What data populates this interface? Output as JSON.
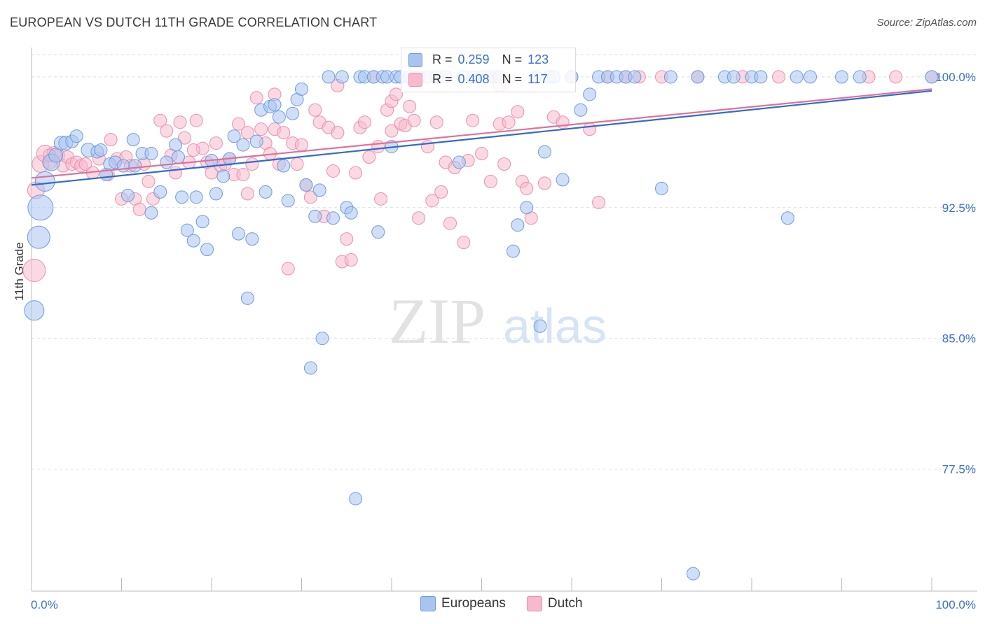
{
  "title": "EUROPEAN VS DUTCH 11TH GRADE CORRELATION CHART",
  "source": "Source: ZipAtlas.com",
  "watermark": {
    "zip": "ZIP",
    "atlas": "atlas"
  },
  "stats": {
    "european": {
      "r_label": "R =",
      "r_value": "0.259",
      "n_label": "N =",
      "n_value": "123"
    },
    "dutch": {
      "r_label": "R =",
      "r_value": "0.408",
      "n_label": "N =",
      "n_value": "117"
    }
  },
  "legend": {
    "european": "Europeans",
    "dutch": "Dutch"
  },
  "colors": {
    "european_fill": "#a9c4f0",
    "european_stroke": "#6f9be0",
    "european_line": "#2f6bd0",
    "dutch_fill": "#f7b9cc",
    "dutch_stroke": "#ec8fae",
    "dutch_line": "#e0709a",
    "tick_label": "#3c6fd1"
  },
  "chart_data": {
    "type": "scatter",
    "title": "EUROPEAN VS DUTCH 11TH GRADE CORRELATION CHART",
    "xlabel": "",
    "ylabel": "11th Grade",
    "xlim": [
      0,
      100
    ],
    "ylim": [
      70.5,
      101.2
    ],
    "x_tick_labels": [
      "0.0%",
      "100.0%"
    ],
    "y_ticks": [
      77.5,
      85.0,
      92.5,
      100.0
    ],
    "y_tick_labels": [
      "77.5%",
      "85.0%",
      "92.5%",
      "100.0%"
    ],
    "grid": true,
    "legend_position": "bottom",
    "series": [
      {
        "name": "Europeans",
        "trend": [
          [
            0,
            93.8
          ],
          [
            100,
            99.2
          ]
        ],
        "points": [
          [
            0.3,
            86.6,
            14
          ],
          [
            0.8,
            90.8,
            16
          ],
          [
            1.0,
            92.5,
            18
          ],
          [
            1.5,
            94.0,
            14
          ],
          [
            2.2,
            95.1,
            12
          ],
          [
            2.7,
            95.5,
            10
          ],
          [
            3.3,
            96.2,
            10
          ],
          [
            3.8,
            96.2,
            10
          ],
          [
            4.5,
            96.3,
            9
          ],
          [
            5.0,
            96.6,
            9
          ],
          [
            6.3,
            95.8,
            10
          ],
          [
            7.3,
            95.7,
            9
          ],
          [
            7.7,
            95.8,
            9
          ],
          [
            8.3,
            94.4,
            9
          ],
          [
            8.7,
            95.0,
            9
          ],
          [
            9.3,
            95.1,
            9
          ],
          [
            10.2,
            94.9,
            9
          ],
          [
            10.7,
            93.2,
            9
          ],
          [
            11.3,
            96.4,
            9
          ],
          [
            11.5,
            94.9,
            9
          ],
          [
            12.3,
            95.6,
            9
          ],
          [
            13.3,
            95.6,
            9
          ],
          [
            13.3,
            92.2,
            9
          ],
          [
            14.3,
            93.4,
            9
          ],
          [
            15.0,
            95.1,
            9
          ],
          [
            16.0,
            96.1,
            9
          ],
          [
            16.3,
            95.4,
            9
          ],
          [
            16.7,
            93.1,
            9
          ],
          [
            17.3,
            91.2,
            9
          ],
          [
            18.0,
            90.6,
            9
          ],
          [
            18.3,
            93.1,
            9
          ],
          [
            19.0,
            91.7,
            9
          ],
          [
            19.5,
            90.1,
            9
          ],
          [
            20.0,
            95.2,
            9
          ],
          [
            20.5,
            93.3,
            9
          ],
          [
            21.3,
            94.3,
            9
          ],
          [
            22.0,
            95.3,
            9
          ],
          [
            22.5,
            96.6,
            9
          ],
          [
            23.0,
            91.0,
            9
          ],
          [
            23.5,
            96.1,
            9
          ],
          [
            24.0,
            87.3,
            9
          ],
          [
            24.5,
            90.7,
            9
          ],
          [
            25.0,
            96.3,
            9
          ],
          [
            25.5,
            98.1,
            9
          ],
          [
            26.0,
            93.4,
            9
          ],
          [
            26.5,
            98.3,
            9
          ],
          [
            27.0,
            98.4,
            9
          ],
          [
            27.5,
            97.7,
            9
          ],
          [
            28.0,
            94.9,
            9
          ],
          [
            28.5,
            92.9,
            9
          ],
          [
            29.0,
            97.9,
            9
          ],
          [
            29.5,
            98.7,
            9
          ],
          [
            30.0,
            99.3,
            9
          ],
          [
            30.5,
            93.8,
            9
          ],
          [
            31.0,
            83.3,
            9
          ],
          [
            31.5,
            92.0,
            9
          ],
          [
            32.0,
            93.5,
            9
          ],
          [
            32.3,
            85.0,
            9
          ],
          [
            33.0,
            100.0,
            9
          ],
          [
            33.5,
            91.9,
            9
          ],
          [
            34.5,
            100.0,
            9
          ],
          [
            35.0,
            92.5,
            9
          ],
          [
            35.5,
            92.2,
            9
          ],
          [
            36.0,
            75.8,
            9
          ],
          [
            36.5,
            100.0,
            9
          ],
          [
            37.0,
            100.0,
            9
          ],
          [
            38.0,
            100.0,
            9
          ],
          [
            38.5,
            91.1,
            9
          ],
          [
            39.0,
            100.0,
            9
          ],
          [
            39.5,
            100.0,
            9
          ],
          [
            40.0,
            96.0,
            9
          ],
          [
            40.5,
            100.0,
            9
          ],
          [
            41.0,
            100.0,
            9
          ],
          [
            42.0,
            100.0,
            9
          ],
          [
            43.0,
            100.0,
            9
          ],
          [
            44.0,
            100.0,
            9
          ],
          [
            45.0,
            100.0,
            9
          ],
          [
            46.0,
            100.0,
            9
          ],
          [
            47.5,
            95.1,
            9
          ],
          [
            48.0,
            100.0,
            9
          ],
          [
            49.0,
            100.0,
            9
          ],
          [
            50.0,
            100.0,
            9
          ],
          [
            51.0,
            100.0,
            9
          ],
          [
            52.0,
            100.0,
            9
          ],
          [
            53.5,
            90.0,
            9
          ],
          [
            54.0,
            91.5,
            9
          ],
          [
            55.0,
            92.5,
            9
          ],
          [
            56.0,
            100.0,
            9
          ],
          [
            56.5,
            85.7,
            9
          ],
          [
            57.0,
            95.7,
            9
          ],
          [
            57.5,
            100.0,
            9
          ],
          [
            58.0,
            100.0,
            9
          ],
          [
            59.0,
            94.1,
            9
          ],
          [
            60.0,
            100.0,
            9
          ],
          [
            61.0,
            98.1,
            9
          ],
          [
            62.0,
            99.0,
            9
          ],
          [
            63.0,
            100.0,
            9
          ],
          [
            64.0,
            100.0,
            9
          ],
          [
            65.0,
            100.0,
            9
          ],
          [
            66.0,
            100.0,
            9
          ],
          [
            67.0,
            100.0,
            9
          ],
          [
            70.0,
            93.6,
            9
          ],
          [
            71.0,
            100.0,
            9
          ],
          [
            73.5,
            71.5,
            9
          ],
          [
            74.0,
            100.0,
            9
          ],
          [
            77.0,
            100.0,
            9
          ],
          [
            78.0,
            100.0,
            9
          ],
          [
            80.0,
            100.0,
            9
          ],
          [
            81.0,
            100.0,
            9
          ],
          [
            84.0,
            91.9,
            9
          ],
          [
            85.0,
            100.0,
            9
          ],
          [
            86.5,
            100.0,
            9
          ],
          [
            90.0,
            100.0,
            9
          ],
          [
            92.0,
            100.0,
            9
          ],
          [
            100.0,
            100.0,
            9
          ]
        ]
      },
      {
        "name": "Dutch",
        "trend": [
          [
            0,
            94.2
          ],
          [
            100,
            99.3
          ]
        ],
        "points": [
          [
            0.3,
            88.9,
            16
          ],
          [
            0.5,
            93.5,
            12
          ],
          [
            1.0,
            95.0,
            12
          ],
          [
            1.5,
            95.6,
            12
          ],
          [
            2.0,
            95.1,
            10
          ],
          [
            2.5,
            95.6,
            10
          ],
          [
            3.0,
            95.5,
            9
          ],
          [
            3.5,
            94.9,
            9
          ],
          [
            4.0,
            95.4,
            9
          ],
          [
            4.5,
            95.0,
            9
          ],
          [
            5.0,
            95.1,
            9
          ],
          [
            5.5,
            94.9,
            9
          ],
          [
            6.0,
            95.0,
            9
          ],
          [
            6.8,
            94.5,
            9
          ],
          [
            7.5,
            95.3,
            9
          ],
          [
            8.5,
            94.4,
            9
          ],
          [
            8.8,
            96.4,
            9
          ],
          [
            9.5,
            95.3,
            9
          ],
          [
            10.0,
            93.0,
            9
          ],
          [
            10.5,
            95.4,
            9
          ],
          [
            11.0,
            94.9,
            9
          ],
          [
            11.5,
            93.0,
            9
          ],
          [
            12.0,
            92.4,
            9
          ],
          [
            12.5,
            95.0,
            9
          ],
          [
            13.0,
            94.0,
            9
          ],
          [
            13.5,
            93.0,
            9
          ],
          [
            14.3,
            97.5,
            9
          ],
          [
            15.0,
            96.9,
            9
          ],
          [
            15.5,
            95.5,
            9
          ],
          [
            16.0,
            94.5,
            9
          ],
          [
            16.5,
            97.4,
            9
          ],
          [
            17.0,
            96.5,
            9
          ],
          [
            17.5,
            95.1,
            9
          ],
          [
            18.3,
            97.5,
            9
          ],
          [
            19.0,
            95.9,
            9
          ],
          [
            19.5,
            95.1,
            9
          ],
          [
            20.0,
            94.5,
            9
          ],
          [
            20.5,
            96.2,
            9
          ],
          [
            21.0,
            94.9,
            9
          ],
          [
            21.5,
            95.0,
            9
          ],
          [
            22.0,
            95.3,
            9
          ],
          [
            22.5,
            94.4,
            9
          ],
          [
            23.0,
            97.3,
            9
          ],
          [
            23.5,
            94.4,
            9
          ],
          [
            24.0,
            93.3,
            9
          ],
          [
            24.5,
            95.0,
            9
          ],
          [
            25.0,
            98.8,
            9
          ],
          [
            25.5,
            97.0,
            9
          ],
          [
            26.0,
            96.2,
            9
          ],
          [
            26.5,
            95.6,
            9
          ],
          [
            27.0,
            97.0,
            9
          ],
          [
            27.5,
            95.0,
            9
          ],
          [
            28.0,
            96.8,
            9
          ],
          [
            28.5,
            89.0,
            9
          ],
          [
            29.0,
            96.2,
            9
          ],
          [
            29.5,
            95.0,
            9
          ],
          [
            30.0,
            96.1,
            9
          ],
          [
            30.5,
            93.8,
            9
          ],
          [
            31.0,
            93.1,
            9
          ],
          [
            31.5,
            98.1,
            9
          ],
          [
            32.0,
            97.4,
            9
          ],
          [
            32.5,
            92.0,
            9
          ],
          [
            33.0,
            97.1,
            9
          ],
          [
            33.5,
            94.6,
            9
          ],
          [
            34.0,
            99.5,
            9
          ],
          [
            34.5,
            89.4,
            9
          ],
          [
            35.0,
            90.7,
            9
          ],
          [
            35.5,
            89.5,
            9
          ],
          [
            36.0,
            94.5,
            9
          ],
          [
            36.5,
            97.1,
            9
          ],
          [
            37.0,
            97.4,
            9
          ],
          [
            37.5,
            95.4,
            9
          ],
          [
            38.0,
            100.0,
            9
          ],
          [
            38.5,
            96.0,
            9
          ],
          [
            38.8,
            93.0,
            9
          ],
          [
            39.5,
            98.1,
            9
          ],
          [
            40.0,
            98.6,
            9
          ],
          [
            40.5,
            99.0,
            9
          ],
          [
            41.0,
            97.3,
            9
          ],
          [
            41.5,
            97.2,
            9
          ],
          [
            42.0,
            98.3,
            9
          ],
          [
            42.5,
            97.5,
            9
          ],
          [
            43.0,
            91.9,
            9
          ],
          [
            44.0,
            96.0,
            9
          ],
          [
            44.5,
            92.9,
            9
          ],
          [
            45.0,
            97.4,
            9
          ],
          [
            45.5,
            93.4,
            9
          ],
          [
            46.0,
            95.1,
            9
          ],
          [
            46.5,
            91.6,
            9
          ],
          [
            47.0,
            94.8,
            9
          ],
          [
            48.0,
            90.5,
            9
          ],
          [
            48.5,
            95.2,
            9
          ],
          [
            49.0,
            97.5,
            9
          ],
          [
            50.0,
            95.6,
            9
          ],
          [
            51.0,
            94.0,
            9
          ],
          [
            51.5,
            100.0,
            9
          ],
          [
            52.0,
            97.3,
            9
          ],
          [
            52.5,
            95.0,
            9
          ],
          [
            53.0,
            97.4,
            9
          ],
          [
            54.0,
            98.0,
            9
          ],
          [
            54.5,
            94.0,
            9
          ],
          [
            55.0,
            93.6,
            9
          ],
          [
            55.5,
            91.9,
            9
          ],
          [
            56.0,
            100.0,
            9
          ],
          [
            57.0,
            93.9,
            9
          ],
          [
            58.0,
            97.7,
            9
          ],
          [
            59.0,
            97.4,
            9
          ],
          [
            60.0,
            100.0,
            9
          ],
          [
            62.0,
            97.0,
            9
          ],
          [
            63.0,
            92.8,
            9
          ],
          [
            64.0,
            100.0,
            9
          ],
          [
            66.0,
            100.0,
            9
          ],
          [
            67.5,
            100.0,
            9
          ],
          [
            70.0,
            100.0,
            9
          ],
          [
            74.0,
            100.0,
            9
          ],
          [
            79.0,
            100.0,
            9
          ],
          [
            83.0,
            100.0,
            9
          ],
          [
            93.0,
            100.0,
            9
          ],
          [
            96.0,
            100.0,
            9
          ],
          [
            100.0,
            100.0,
            9
          ],
          [
            2.0,
            95.5,
            9
          ],
          [
            34.0,
            96.8,
            9
          ],
          [
            52.0,
            99.5,
            9
          ],
          [
            24.0,
            96.8,
            9
          ],
          [
            18.0,
            95.8,
            9
          ],
          [
            40.0,
            96.9,
            9
          ],
          [
            27.0,
            99.0,
            9
          ]
        ]
      }
    ]
  }
}
